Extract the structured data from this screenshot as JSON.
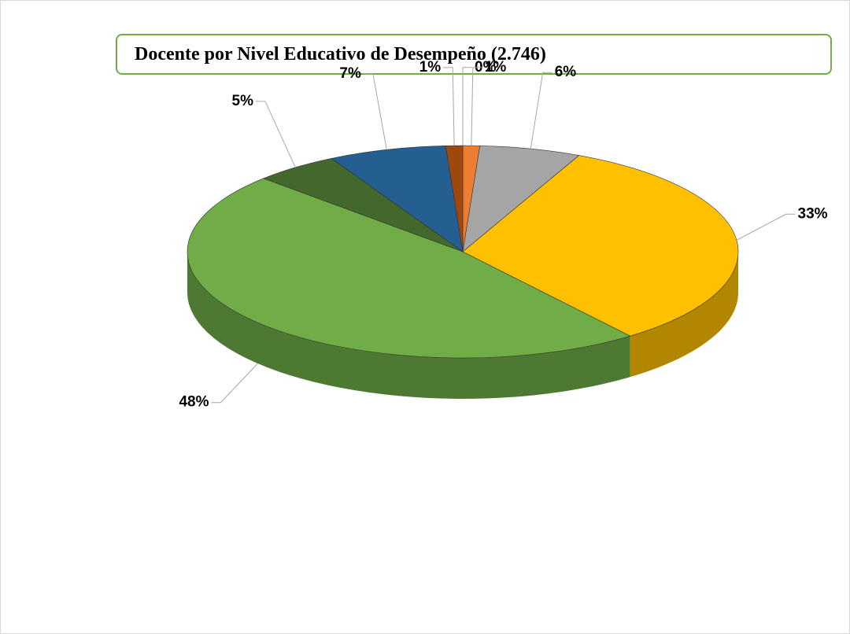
{
  "chart_data": {
    "type": "pie",
    "title": "Docente por Nivel Educativo de Desempeño (2.746)",
    "values": [
      0,
      1,
      6,
      33,
      48,
      5,
      7,
      1
    ],
    "value_labels": [
      "0%",
      "1%",
      "6%",
      "33%",
      "48%",
      "5%",
      "7%",
      "1%"
    ],
    "colors": [
      "#843c0c",
      "#ed7d31",
      "#a5a5a5",
      "#ffc000",
      "#70ad47",
      "#43682b",
      "#255e91",
      "#9e480e"
    ]
  }
}
